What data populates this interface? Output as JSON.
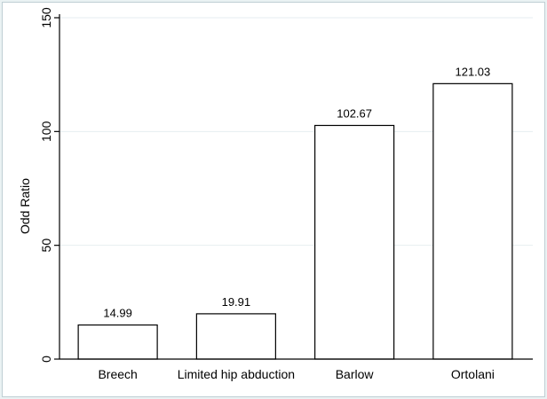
{
  "chart_data": {
    "type": "bar",
    "categories": [
      "Breech",
      "Limited hip abduction",
      "Barlow",
      "Ortolani"
    ],
    "values": [
      14.99,
      19.91,
      102.67,
      121.03
    ],
    "data_labels": [
      "14.99",
      "19.91",
      "102.67",
      "121.03"
    ],
    "title": "",
    "xlabel": "",
    "ylabel": "Odd Ratio",
    "ylim": [
      0,
      150
    ],
    "yticks": [
      0,
      50,
      100,
      150
    ],
    "ytick_labels": [
      "0",
      "50",
      "100",
      "150"
    ],
    "grid": true,
    "legend": "none",
    "colors": {
      "bar_fill": "#ffffff",
      "bar_stroke": "#000000",
      "gridline": "#e6eef0",
      "axis": "#000000",
      "background": "#eaf2f3"
    }
  }
}
